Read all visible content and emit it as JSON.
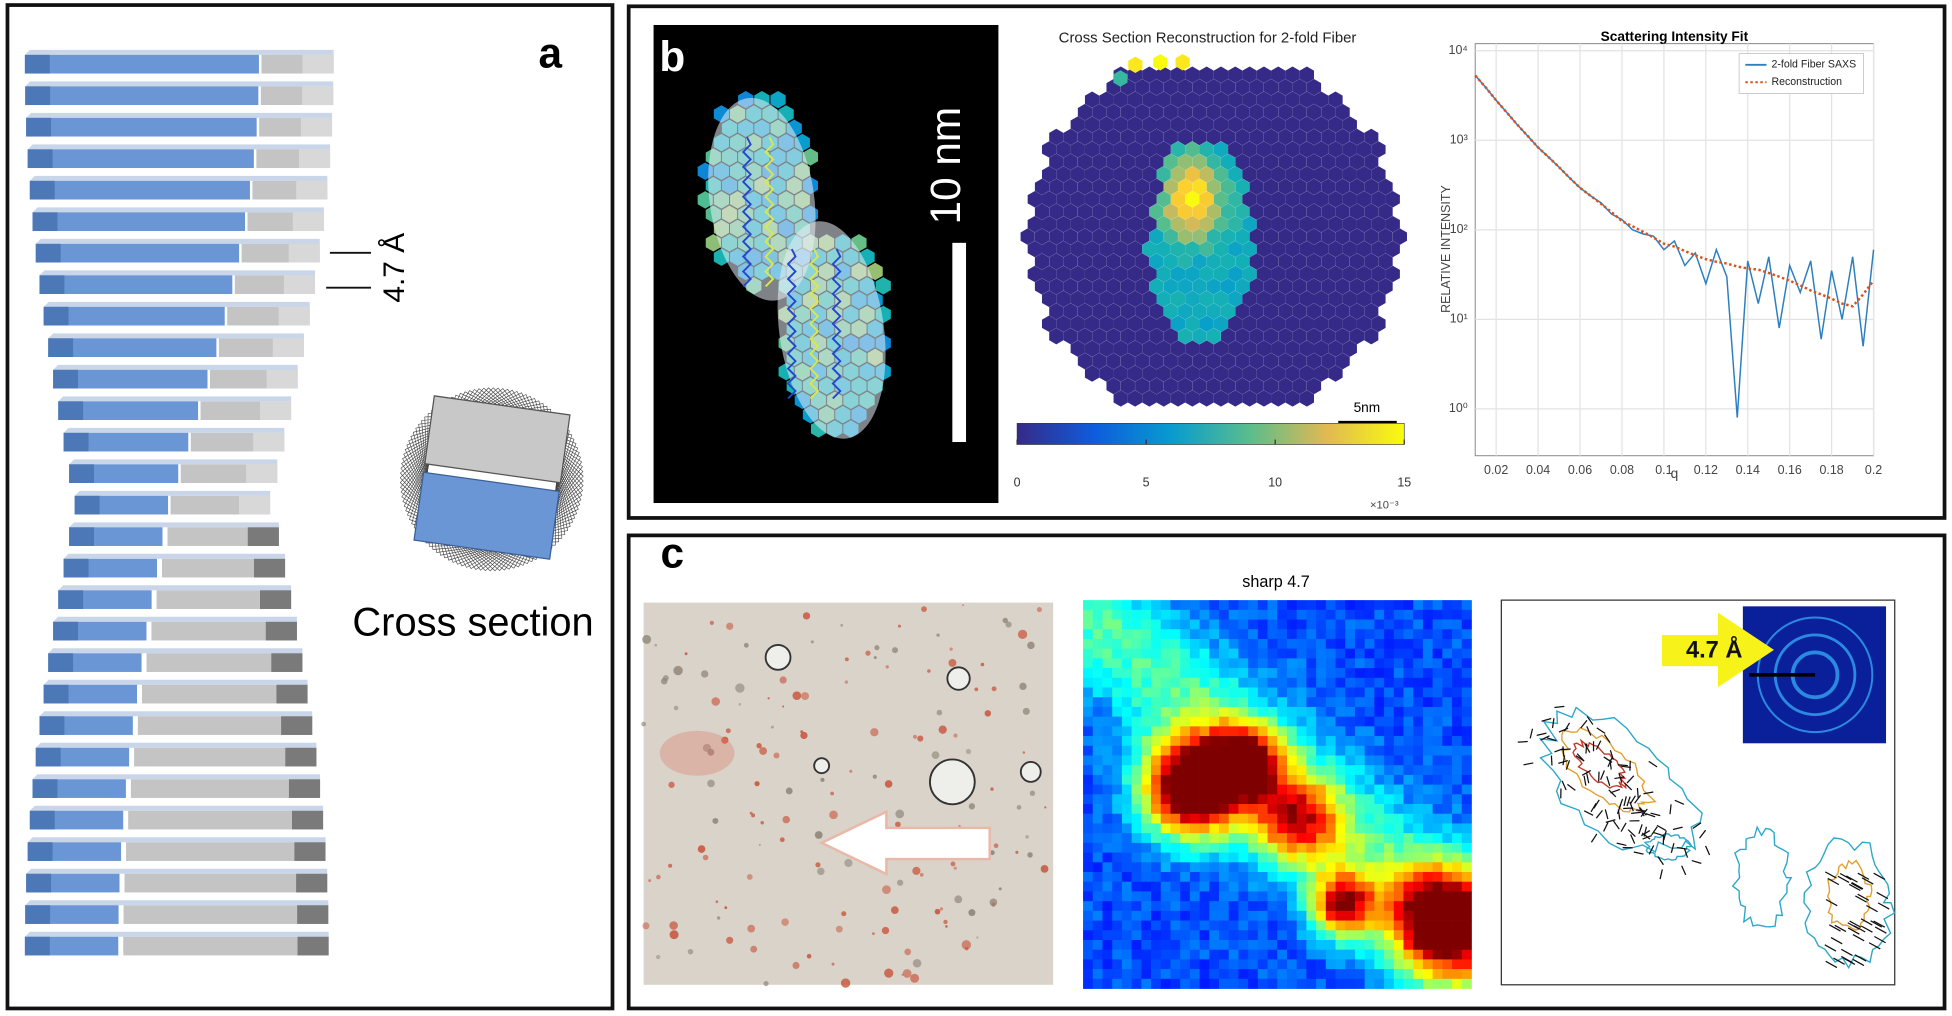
{
  "figure": {
    "panel_a": {
      "label": "a",
      "spacing_label": "4.7 Å",
      "cross_section_label": "Cross section"
    },
    "panel_b": {
      "label": "b",
      "scale_bar_label": "10 nm",
      "reconstruction": {
        "title": "Cross Section Reconstruction for 2-fold Fiber",
        "scale_bar_label": "5nm",
        "colorbar": {
          "lim": [
            0,
            15
          ],
          "ticks": [
            0,
            5,
            10,
            15
          ],
          "multiplier_label": "×10⁻³"
        }
      }
    },
    "panel_c": {
      "label": "c",
      "map_title": "sharp 4.7",
      "callout": "4.7 Å"
    }
  },
  "chart_data": {
    "type": "line",
    "title": "Scattering Intensity Fit",
    "x_label": "q",
    "y_label": "RELATIVE INTENSITY",
    "log_y": true,
    "grid": true,
    "legend": "upper right",
    "xlim": [
      0.01,
      0.2
    ],
    "xticks": [
      0.02,
      0.04,
      0.06,
      0.08,
      0.1,
      0.12,
      0.14,
      0.16,
      0.18,
      0.2
    ],
    "ylim": [
      0.3,
      12000
    ],
    "yticks": [
      {
        "value": 1,
        "label": "10⁰"
      },
      {
        "value": 10,
        "label": "10¹"
      },
      {
        "value": 100,
        "label": "10²"
      },
      {
        "value": 1000,
        "label": "10³"
      },
      {
        "value": 10000,
        "label": "10⁴"
      }
    ],
    "x": [
      0.01,
      0.015,
      0.02,
      0.025,
      0.03,
      0.035,
      0.04,
      0.045,
      0.05,
      0.055,
      0.06,
      0.065,
      0.07,
      0.075,
      0.08,
      0.085,
      0.09,
      0.095,
      0.1,
      0.105,
      0.11,
      0.115,
      0.12,
      0.125,
      0.13,
      0.135,
      0.14,
      0.145,
      0.15,
      0.155,
      0.16,
      0.165,
      0.17,
      0.175,
      0.18,
      0.185,
      0.19,
      0.195,
      0.2
    ],
    "series": [
      {
        "name": "2-fold Fiber SAXS",
        "color": "#2e7fc0",
        "style": "solid",
        "values": [
          5300,
          3900,
          2800,
          2050,
          1500,
          1120,
          830,
          650,
          500,
          380,
          295,
          240,
          200,
          150,
          130,
          100,
          90,
          85,
          60,
          75,
          40,
          55,
          25,
          60,
          30,
          0.8,
          45,
          15,
          50,
          8,
          40,
          20,
          45,
          6,
          35,
          10,
          50,
          5,
          60
        ]
      },
      {
        "name": "Reconstruction",
        "color": "#d9531e",
        "style": "dotted",
        "values": [
          5300,
          3900,
          2800,
          2050,
          1500,
          1120,
          830,
          650,
          500,
          380,
          295,
          240,
          195,
          158,
          125,
          110,
          95,
          82,
          70,
          65,
          58,
          52,
          47,
          44,
          42,
          39,
          37,
          36,
          33,
          30,
          27,
          24,
          21,
          19,
          17,
          15,
          14,
          19,
          27
        ]
      }
    ]
  }
}
